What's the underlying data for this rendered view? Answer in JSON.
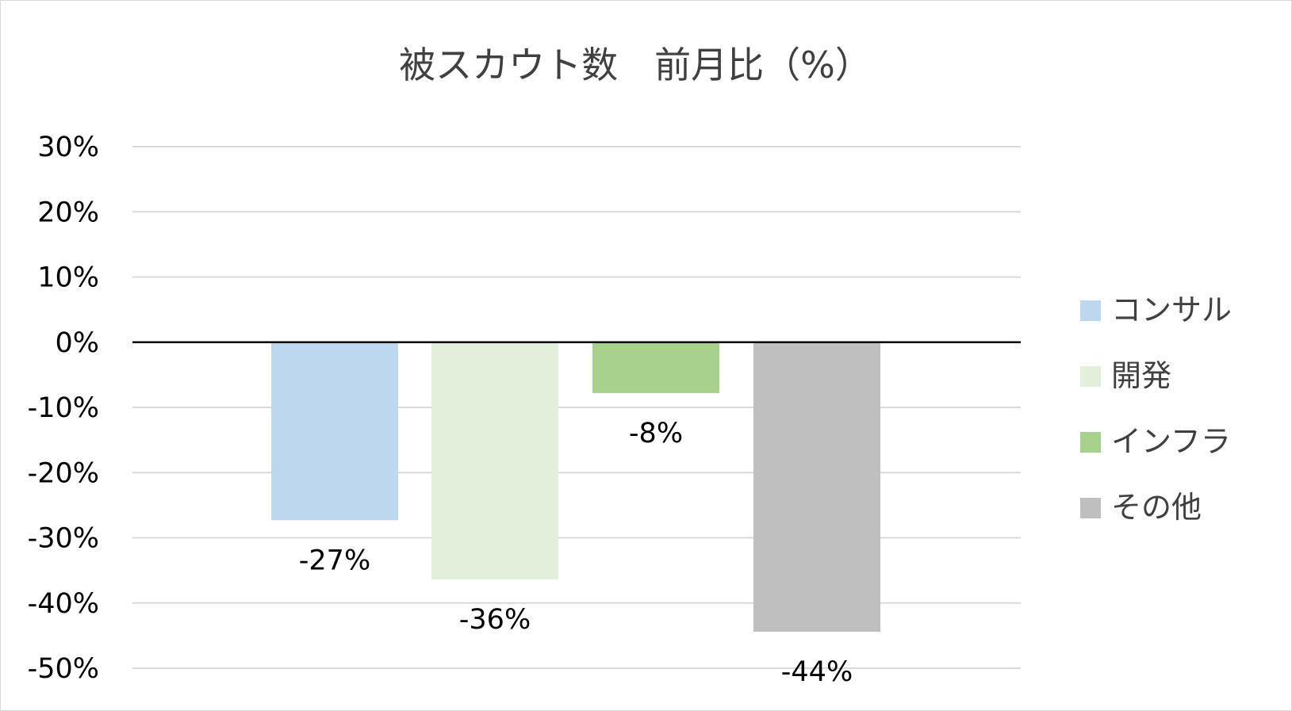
{
  "chart_data": {
    "type": "bar",
    "title": "被スカウト数　前月比（%）",
    "xlabel": "",
    "ylabel": "",
    "ylim": [
      -50,
      30
    ],
    "y_ticks": [
      30,
      20,
      10,
      0,
      -10,
      -20,
      -30,
      -40,
      -50
    ],
    "y_tick_labels": [
      "30%",
      "20%",
      "10%",
      "0%",
      "-10%",
      "-20%",
      "-30%",
      "-40%",
      "-50%"
    ],
    "grid": true,
    "legend_position": "right",
    "series": [
      {
        "name": "コンサル",
        "value": -27.3,
        "label": "-27%",
        "color": "#bdd7ee"
      },
      {
        "name": "開発",
        "value": -36.4,
        "label": "-36%",
        "color": "#e2efda"
      },
      {
        "name": "インフラ",
        "value": -7.8,
        "label": "-8%",
        "color": "#a9d18e"
      },
      {
        "name": "その他",
        "value": -44.4,
        "label": "-44%",
        "color": "#bfbfbf"
      }
    ],
    "colors": {
      "gridline": "#d9d9d9",
      "zero_line": "#000000",
      "title": "#404040",
      "legend_text": "#404040"
    }
  }
}
